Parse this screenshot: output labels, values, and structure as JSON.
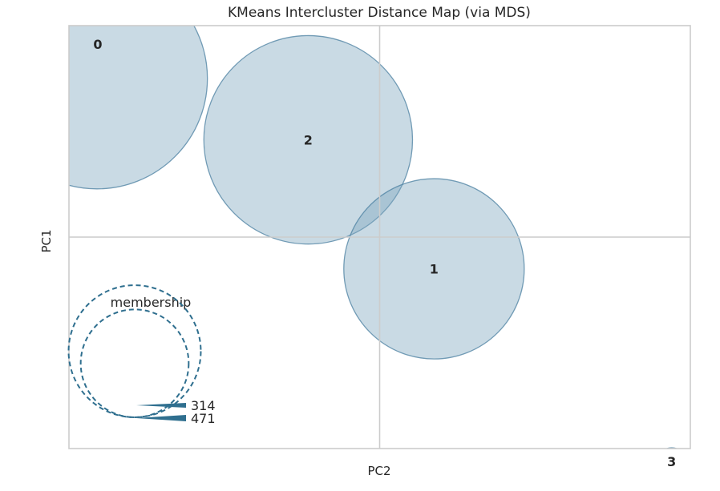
{
  "chart_data": {
    "type": "scatter",
    "title": "KMeans Intercluster Distance Map (via MDS)",
    "xlabel": "PC2",
    "ylabel": "PC1",
    "xlim": [
      -1.0,
      1.0
    ],
    "ylim": [
      -1.0,
      1.0
    ],
    "grid": false,
    "crosshair_at": [
      0,
      0
    ],
    "marker_color": "#4a7fa0",
    "fill_color": "#c5d9e3",
    "legend_color": "#2f6f8f",
    "clusters": [
      {
        "label": "0",
        "x": -0.91,
        "y": 0.75,
        "size": 471
      },
      {
        "label": "2",
        "x": -0.23,
        "y": 0.46,
        "size": 420
      },
      {
        "label": "1",
        "x": 0.175,
        "y": -0.15,
        "size": 314
      },
      {
        "label": "3",
        "x": 0.94,
        "y": -1.06,
        "size": 7
      }
    ],
    "legend": {
      "title": "membership",
      "placement": "bottom-left",
      "sizes": [
        314,
        471
      ],
      "labels": [
        "314",
        "471"
      ]
    }
  }
}
